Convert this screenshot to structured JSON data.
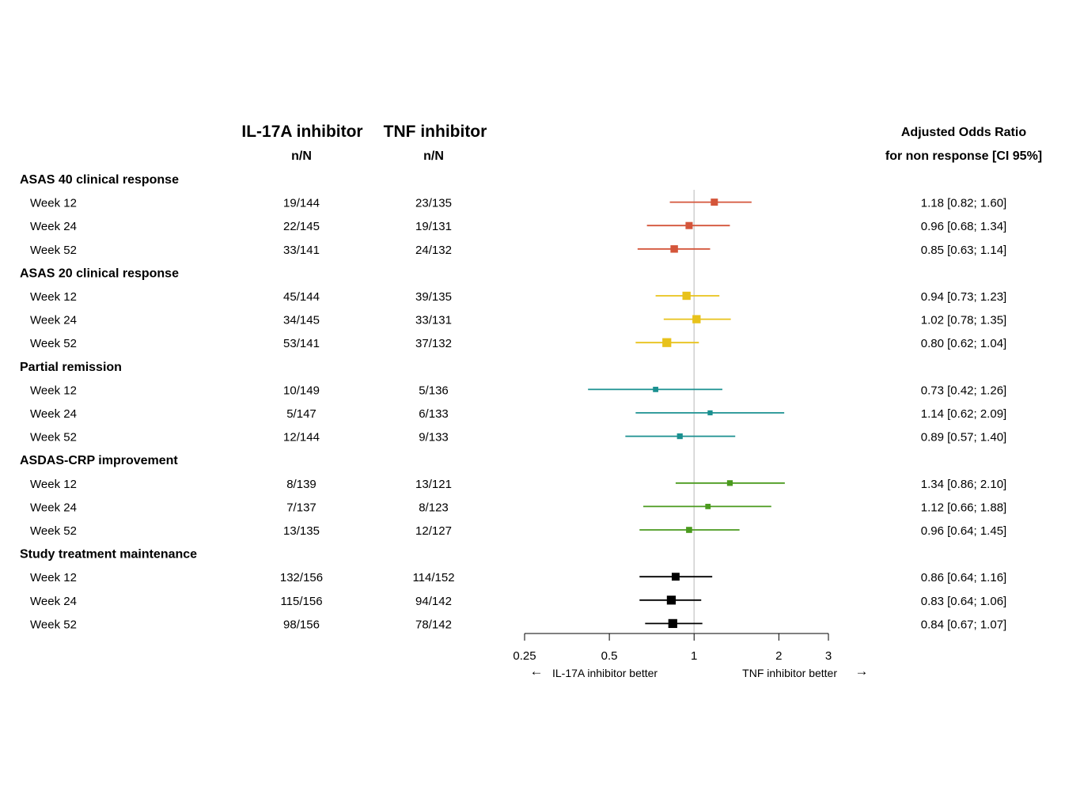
{
  "chart_data": {
    "type": "forest",
    "columns": {
      "il17": {
        "title": "IL-17A inhibitor",
        "sub": "n/N"
      },
      "tnf": {
        "title": "TNF inhibitor",
        "sub": "n/N"
      },
      "or": {
        "title": "Adjusted Odds Ratio",
        "sub": "for non response [CI 95%]"
      }
    },
    "xaxis": {
      "scale": "log",
      "range": [
        0.25,
        3
      ],
      "ticks": [
        0.25,
        0.5,
        1,
        2,
        3
      ],
      "tick_labels": [
        "0.25",
        "0.5",
        "1",
        "2",
        "3"
      ],
      "reference": 1,
      "left_label": "IL-17A inhibitor better",
      "right_label": "TNF inhibitor better",
      "left_arrow": "←",
      "right_arrow": "→"
    },
    "groups": [
      {
        "name": "ASAS 40 clinical response",
        "color": "#d4553a",
        "rows": [
          {
            "label": "Week 12",
            "il17": "19/144",
            "tnf": "23/135",
            "or": 1.18,
            "lo": 0.82,
            "hi": 1.6,
            "text": "1.18 [0.82; 1.60]",
            "size": 1.0
          },
          {
            "label": "Week 24",
            "il17": "22/145",
            "tnf": "19/131",
            "or": 0.96,
            "lo": 0.68,
            "hi": 1.34,
            "text": "0.96 [0.68; 1.34]",
            "size": 1.0
          },
          {
            "label": "Week 52",
            "il17": "33/141",
            "tnf": "24/132",
            "or": 0.85,
            "lo": 0.63,
            "hi": 1.14,
            "text": "0.85 [0.63; 1.14]",
            "size": 1.05
          }
        ]
      },
      {
        "name": "ASAS 20 clinical response",
        "color": "#e8c21a",
        "rows": [
          {
            "label": "Week 12",
            "il17": "45/144",
            "tnf": "39/135",
            "or": 0.94,
            "lo": 0.73,
            "hi": 1.23,
            "text": "0.94 [0.73; 1.23]",
            "size": 1.15
          },
          {
            "label": "Week 24",
            "il17": "34/145",
            "tnf": "33/131",
            "or": 1.02,
            "lo": 0.78,
            "hi": 1.35,
            "text": "1.02 [0.78; 1.35]",
            "size": 1.15
          },
          {
            "label": "Week 52",
            "il17": "53/141",
            "tnf": "37/132",
            "or": 0.8,
            "lo": 0.62,
            "hi": 1.04,
            "text": "0.80 [0.62; 1.04]",
            "size": 1.25
          }
        ]
      },
      {
        "name": "Partial remission",
        "color": "#1a9090",
        "rows": [
          {
            "label": "Week 12",
            "il17": "10/149",
            "tnf": "5/136",
            "or": 0.73,
            "lo": 0.42,
            "hi": 1.26,
            "text": "0.73 [0.42; 1.26]",
            "size": 0.75
          },
          {
            "label": "Week 24",
            "il17": "5/147",
            "tnf": "6/133",
            "or": 1.14,
            "lo": 0.62,
            "hi": 2.09,
            "text": "1.14 [0.62; 2.09]",
            "size": 0.7
          },
          {
            "label": "Week 52",
            "il17": "12/144",
            "tnf": "9/133",
            "or": 0.89,
            "lo": 0.57,
            "hi": 1.4,
            "text": "0.89 [0.57; 1.40]",
            "size": 0.8
          }
        ]
      },
      {
        "name": "ASDAS-CRP improvement",
        "color": "#4a9a1e",
        "rows": [
          {
            "label": "Week 12",
            "il17": "8/139",
            "tnf": "13/121",
            "or": 1.34,
            "lo": 0.86,
            "hi": 2.1,
            "text": "1.34 [0.86; 2.10]",
            "size": 0.8
          },
          {
            "label": "Week 24",
            "il17": "7/137",
            "tnf": "8/123",
            "or": 1.12,
            "lo": 0.66,
            "hi": 1.88,
            "text": "1.12 [0.66; 1.88]",
            "size": 0.75
          },
          {
            "label": "Week 52",
            "il17": "13/135",
            "tnf": "12/127",
            "or": 0.96,
            "lo": 0.64,
            "hi": 1.45,
            "text": "0.96 [0.64; 1.45]",
            "size": 0.85
          }
        ]
      },
      {
        "name": "Study treatment maintenance",
        "color": "#000000",
        "rows": [
          {
            "label": "Week 12",
            "il17": "132/156",
            "tnf": "114/152",
            "or": 0.86,
            "lo": 0.64,
            "hi": 1.16,
            "text": "0.86 [0.64; 1.16]",
            "size": 1.1
          },
          {
            "label": "Week 24",
            "il17": "115/156",
            "tnf": "94/142",
            "or": 0.83,
            "lo": 0.64,
            "hi": 1.06,
            "text": "0.83 [0.64; 1.06]",
            "size": 1.25
          },
          {
            "label": "Week 52",
            "il17": "98/156",
            "tnf": "78/142",
            "or": 0.84,
            "lo": 0.67,
            "hi": 1.07,
            "text": "0.84 [0.67; 1.07]",
            "size": 1.25
          }
        ]
      }
    ]
  }
}
